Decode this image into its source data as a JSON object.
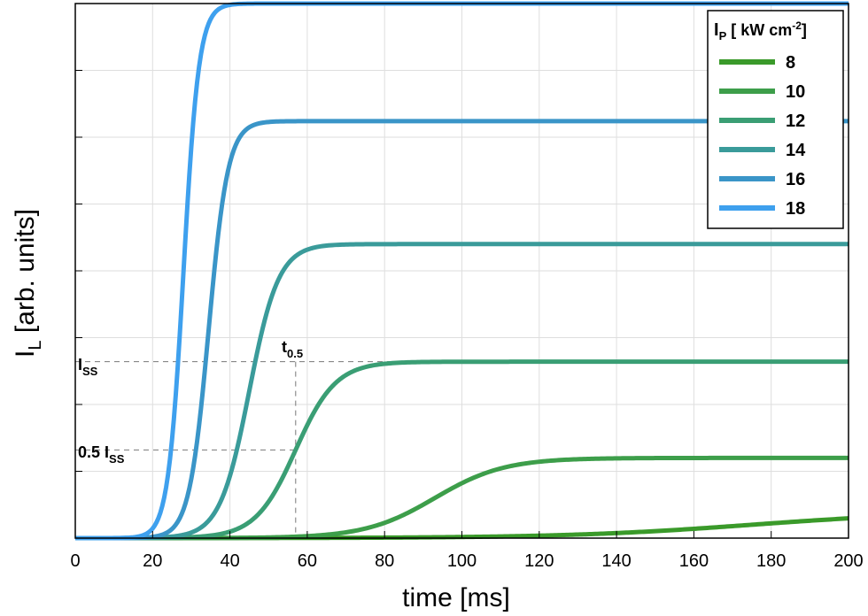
{
  "chart_data": {
    "type": "line",
    "xlabel": "time [ms]",
    "ylabel_main": "I",
    "ylabel_sub": "L",
    "ylabel_rest": " [arb. units]",
    "xlim": [
      0,
      200
    ],
    "ylim": [
      0,
      1.0
    ],
    "xticks": [
      0,
      20,
      40,
      60,
      80,
      100,
      120,
      140,
      160,
      180,
      200
    ],
    "yticks": [
      0,
      0.125,
      0.25,
      0.375,
      0.5,
      0.625,
      0.75,
      0.875,
      1.0
    ],
    "grid": true,
    "legend": {
      "placement": "top-right",
      "title_main": "I",
      "title_sub": "P",
      "title_unit": " [ kW cm",
      "title_sup": "-2",
      "title_end": "]"
    },
    "series": [
      {
        "name": "8",
        "color": "#3a9a2a",
        "plateau": 0.05,
        "t_half": 175,
        "width": 24
      },
      {
        "name": "10",
        "color": "#3d9e4a",
        "plateau": 0.15,
        "t_half": 93,
        "width": 9
      },
      {
        "name": "12",
        "color": "#3a9e74",
        "plateau": 0.33,
        "t_half": 57,
        "width": 5.2
      },
      {
        "name": "14",
        "color": "#3a9b9a",
        "plateau": 0.55,
        "t_half": 45,
        "width": 3.8
      },
      {
        "name": "16",
        "color": "#3a95c8",
        "plateau": 0.78,
        "t_half": 34.5,
        "width": 2.5
      },
      {
        "name": "18",
        "color": "#3ea0ee",
        "plateau": 1.0,
        "t_half": 28,
        "width": 2.0
      }
    ],
    "annotations": {
      "iss_label_main": "I",
      "iss_label_sub": "SS",
      "half_label_main": "0.5 I",
      "half_label_sub": "SS",
      "t_label_main": "t",
      "t_label_sub": "0.5",
      "iss_value": 0.33,
      "half_value": 0.165,
      "t_value": 57
    }
  }
}
